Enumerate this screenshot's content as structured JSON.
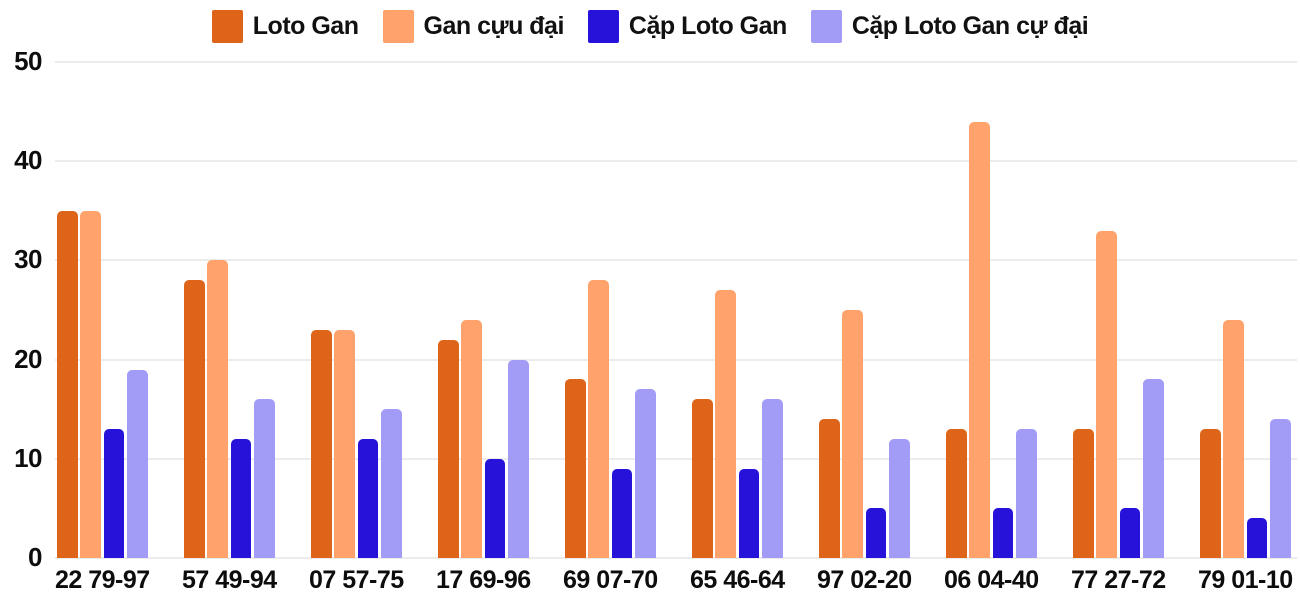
{
  "chart_data": {
    "type": "bar",
    "title": "",
    "xlabel": "",
    "ylabel": "",
    "categories": [
      "22 79-97",
      "57 49-94",
      "07 57-75",
      "17 69-96",
      "69 07-70",
      "65 46-64",
      "97 02-20",
      "06 04-40",
      "77 27-72",
      "79 01-10"
    ],
    "series": [
      {
        "name": "Loto Gan",
        "color": "#dd6418",
        "values": [
          35,
          28,
          23,
          22,
          18,
          16,
          14,
          13,
          13,
          13
        ]
      },
      {
        "name": "Gan cựu đại",
        "color": "#ffa26b",
        "values": [
          35,
          30,
          23,
          24,
          28,
          27,
          25,
          44,
          33,
          24
        ]
      },
      {
        "name": "Cặp Loto Gan",
        "color": "#2612d9",
        "values": [
          13,
          12,
          12,
          10,
          9,
          9,
          5,
          5,
          5,
          4
        ]
      },
      {
        "name": "Cặp Loto Gan cự đại",
        "color": "#a39cf7",
        "values": [
          19,
          16,
          15,
          20,
          17,
          16,
          12,
          13,
          18,
          14
        ]
      }
    ],
    "y_ticks": [
      0,
      10,
      20,
      30,
      40,
      50
    ],
    "ylim": [
      0,
      50
    ],
    "grid": true,
    "gridline_color": "#ececec",
    "text_color": "#0d0d0d",
    "legend_position": "top"
  }
}
